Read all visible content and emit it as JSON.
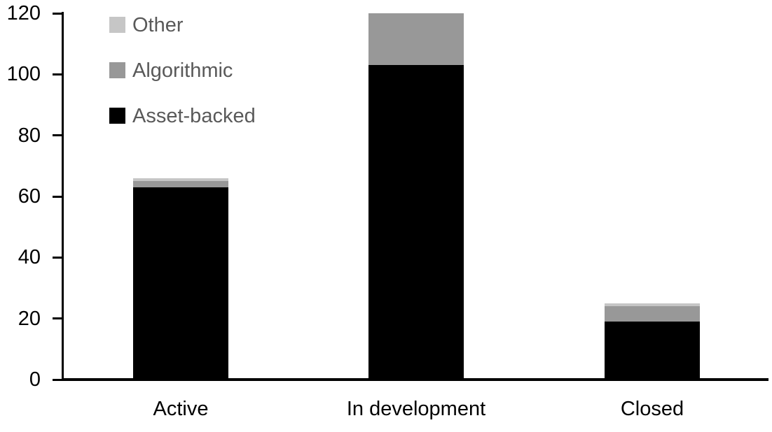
{
  "chart_data": {
    "type": "bar",
    "stacked": true,
    "title": "",
    "xlabel": "",
    "ylabel": "",
    "categories": [
      "Active",
      "In development",
      "Closed"
    ],
    "series": [
      {
        "name": "Asset-backed",
        "color": "#000000",
        "values": [
          63,
          103,
          19
        ]
      },
      {
        "name": "Algorithmic",
        "color": "#989898",
        "values": [
          2,
          17,
          5
        ]
      },
      {
        "name": "Other",
        "color": "#c6c6c6",
        "values": [
          1,
          0,
          1
        ]
      }
    ],
    "totals": [
      66,
      120,
      25
    ],
    "yticks": [
      0,
      20,
      40,
      60,
      80,
      100,
      120
    ],
    "ylim": [
      0,
      120
    ],
    "grid": false,
    "legend": {
      "position": "top-left",
      "text_color": "#595959",
      "entries": [
        {
          "label": "Other",
          "color": "#c6c6c6"
        },
        {
          "label": "Algorithmic",
          "color": "#989898"
        },
        {
          "label": "Asset-backed",
          "color": "#000000"
        }
      ]
    },
    "axis_color": "#000000",
    "background_color": "#ffffff"
  }
}
